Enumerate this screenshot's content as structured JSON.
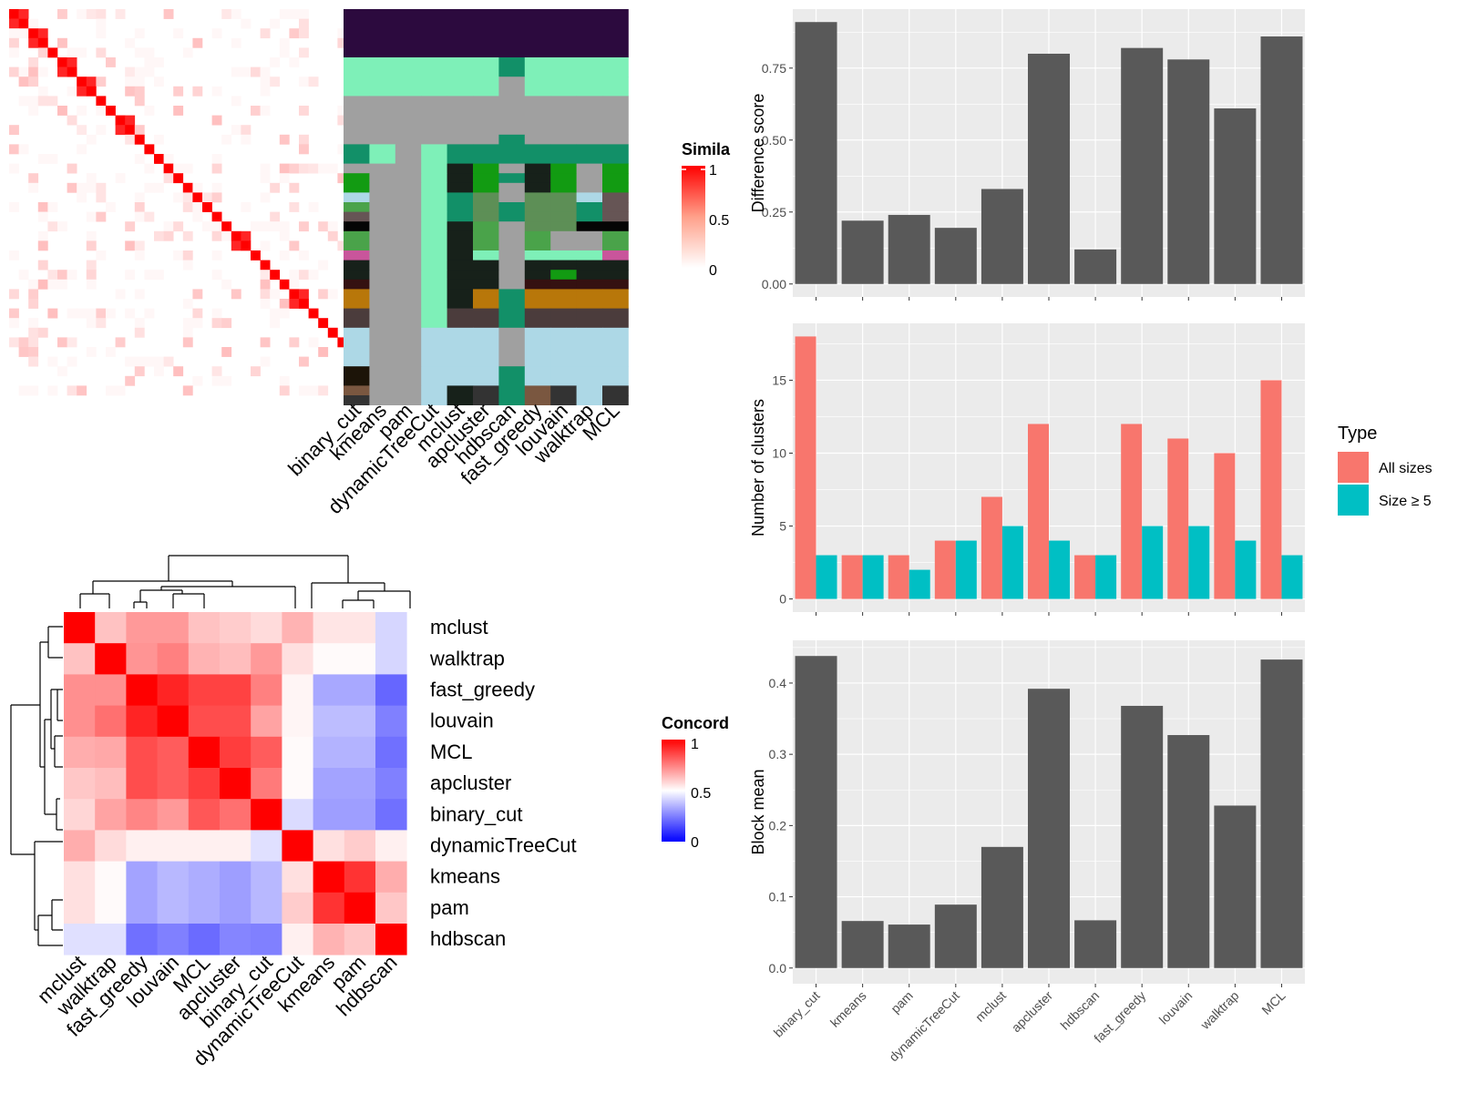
{
  "similarity_legend": {
    "title": "Simila",
    "ticks": [
      "1",
      "0.5",
      "0"
    ]
  },
  "concordance_legend": {
    "title": "Concord",
    "ticks": [
      "1",
      "0.5",
      "0"
    ]
  },
  "palette": {
    "panel_bg": "#ebebeb",
    "grid": "#ffffff",
    "bar": "#595959",
    "all_sizes": "#f8766d",
    "size5": "#00bfc4",
    "high": "#ff0000",
    "mid": "#ffffff",
    "low": "#0000ff"
  },
  "chart_data": [
    {
      "type": "heatmap",
      "name": "similarity",
      "size": 40,
      "blocks": [
        2,
        2,
        1,
        2,
        2,
        1,
        1,
        2,
        1,
        1,
        1,
        1,
        1,
        1,
        1,
        1,
        1,
        1,
        2,
        1,
        1,
        1,
        1,
        2,
        1,
        1,
        1,
        1,
        1
      ],
      "scale": [
        0,
        0.5,
        1
      ]
    },
    {
      "type": "table",
      "name": "cluster-membership",
      "columns": [
        "binary_cut",
        "kmeans",
        "pam",
        "dynamicTreeCut",
        "mclust",
        "apcluster",
        "hdbscan",
        "fast_greedy",
        "louvain",
        "walktrap",
        "MCL"
      ],
      "row_bands": [
        {
          "rows": 5,
          "cells": [
            "#2c0a3e",
            "#2c0a3e",
            "#2c0a3e",
            "#2c0a3e",
            "#2c0a3e",
            "#2c0a3e",
            "#2c0a3e",
            "#2c0a3e",
            "#2c0a3e",
            "#2c0a3e",
            "#2c0a3e"
          ]
        },
        {
          "rows": 2,
          "cells": [
            "#7ef0b8",
            "#7ef0b8",
            "#7ef0b8",
            "#7ef0b8",
            "#7ef0b8",
            "#7ef0b8",
            "#129068",
            "#7ef0b8",
            "#7ef0b8",
            "#7ef0b8",
            "#7ef0b8"
          ]
        },
        {
          "rows": 2,
          "cells": [
            "#7ef0b8",
            "#7ef0b8",
            "#7ef0b8",
            "#7ef0b8",
            "#7ef0b8",
            "#7ef0b8",
            "#a0a0a0",
            "#7ef0b8",
            "#7ef0b8",
            "#7ef0b8",
            "#7ef0b8"
          ]
        },
        {
          "rows": 4,
          "cells": [
            "#a0a0a0",
            "#a0a0a0",
            "#a0a0a0",
            "#a0a0a0",
            "#a0a0a0",
            "#a0a0a0",
            "#a0a0a0",
            "#a0a0a0",
            "#a0a0a0",
            "#a0a0a0",
            "#a0a0a0"
          ]
        },
        {
          "rows": 1,
          "cells": [
            "#a0a0a0",
            "#a0a0a0",
            "#a0a0a0",
            "#a0a0a0",
            "#a0a0a0",
            "#a0a0a0",
            "#129068",
            "#a0a0a0",
            "#a0a0a0",
            "#a0a0a0",
            "#a0a0a0"
          ]
        },
        {
          "rows": 2,
          "cells": [
            "#129068",
            "#7ef0b8",
            "#a0a0a0",
            "#7ef0b8",
            "#129068",
            "#129068",
            "#129068",
            "#129068",
            "#129068",
            "#129068",
            "#129068"
          ]
        },
        {
          "rows": 1,
          "cells": [
            "#a0a0a0",
            "#a0a0a0",
            "#a0a0a0",
            "#7ef0b8",
            "#17211a",
            "#129b12",
            "#a0a0a0",
            "#17211a",
            "#129b12",
            "#a0a0a0",
            "#129b12"
          ]
        },
        {
          "rows": 1,
          "cells": [
            "#129b12",
            "#a0a0a0",
            "#a0a0a0",
            "#7ef0b8",
            "#17211a",
            "#129b12",
            "#129068",
            "#17211a",
            "#129b12",
            "#a0a0a0",
            "#129b12"
          ]
        },
        {
          "rows": 1,
          "cells": [
            "#129b12",
            "#a0a0a0",
            "#a0a0a0",
            "#7ef0b8",
            "#17211a",
            "#129b12",
            "#a0a0a0",
            "#17211a",
            "#129b12",
            "#a0a0a0",
            "#129b12"
          ]
        },
        {
          "rows": 1,
          "cells": [
            "#add8e6",
            "#a0a0a0",
            "#a0a0a0",
            "#7ef0b8",
            "#129068",
            "#5d8f56",
            "#a0a0a0",
            "#5d8f56",
            "#5d8f56",
            "#add8e6",
            "#665555"
          ]
        },
        {
          "rows": 1,
          "cells": [
            "#4aa34a",
            "#a0a0a0",
            "#a0a0a0",
            "#7ef0b8",
            "#129068",
            "#5d8f56",
            "#129068",
            "#5d8f56",
            "#5d8f56",
            "#129068",
            "#665555"
          ]
        },
        {
          "rows": 1,
          "cells": [
            "#665555",
            "#a0a0a0",
            "#a0a0a0",
            "#7ef0b8",
            "#129068",
            "#5d8f56",
            "#129068",
            "#5d8f56",
            "#5d8f56",
            "#129068",
            "#665555"
          ]
        },
        {
          "rows": 1,
          "cells": [
            "#050505",
            "#a0a0a0",
            "#a0a0a0",
            "#7ef0b8",
            "#17211a",
            "#4aa34a",
            "#a0a0a0",
            "#5d8f56",
            "#5d8f56",
            "#050505",
            "#050505"
          ]
        },
        {
          "rows": 2,
          "cells": [
            "#4aa34a",
            "#a0a0a0",
            "#a0a0a0",
            "#7ef0b8",
            "#17211a",
            "#4aa34a",
            "#a0a0a0",
            "#4aa34a",
            "#a0a0a0",
            "#a0a0a0",
            "#4aa34a"
          ]
        },
        {
          "rows": 1,
          "cells": [
            "#c9559b",
            "#a0a0a0",
            "#a0a0a0",
            "#7ef0b8",
            "#17211a",
            "#7ef0b8",
            "#a0a0a0",
            "#7ef0b8",
            "#7ef0b8",
            "#7ef0b8",
            "#c9559b"
          ]
        },
        {
          "rows": 1,
          "cells": [
            "#17211a",
            "#a0a0a0",
            "#a0a0a0",
            "#7ef0b8",
            "#17211a",
            "#17211a",
            "#a0a0a0",
            "#17211a",
            "#17211a",
            "#17211a",
            "#17211a"
          ]
        },
        {
          "rows": 1,
          "cells": [
            "#17211a",
            "#a0a0a0",
            "#a0a0a0",
            "#7ef0b8",
            "#17211a",
            "#17211a",
            "#a0a0a0",
            "#17211a",
            "#129b12",
            "#17211a",
            "#17211a"
          ]
        },
        {
          "rows": 1,
          "cells": [
            "#351111",
            "#a0a0a0",
            "#a0a0a0",
            "#7ef0b8",
            "#17211a",
            "#17211a",
            "#a0a0a0",
            "#351111",
            "#351111",
            "#351111",
            "#351111"
          ]
        },
        {
          "rows": 2,
          "cells": [
            "#b8770a",
            "#a0a0a0",
            "#a0a0a0",
            "#7ef0b8",
            "#17211a",
            "#b8770a",
            "#129068",
            "#b8770a",
            "#b8770a",
            "#b8770a",
            "#b8770a"
          ]
        },
        {
          "rows": 2,
          "cells": [
            "#4b3c3c",
            "#a0a0a0",
            "#a0a0a0",
            "#7ef0b8",
            "#4b3c3c",
            "#4b3c3c",
            "#129068",
            "#4b3c3c",
            "#4b3c3c",
            "#4b3c3c",
            "#4b3c3c"
          ]
        },
        {
          "rows": 4,
          "cells": [
            "#add8e6",
            "#a0a0a0",
            "#a0a0a0",
            "#add8e6",
            "#add8e6",
            "#add8e6",
            "#a0a0a0",
            "#add8e6",
            "#add8e6",
            "#add8e6",
            "#add8e6"
          ]
        },
        {
          "rows": 2,
          "cells": [
            "#1c1408",
            "#a0a0a0",
            "#a0a0a0",
            "#add8e6",
            "#add8e6",
            "#add8e6",
            "#129068",
            "#add8e6",
            "#add8e6",
            "#add8e6",
            "#add8e6"
          ]
        },
        {
          "rows": 1,
          "cells": [
            "#7a5740",
            "#a0a0a0",
            "#a0a0a0",
            "#add8e6",
            "#17211a",
            "#333333",
            "#129068",
            "#7a5740",
            "#333333",
            "#add8e6",
            "#333333"
          ]
        },
        {
          "rows": 1,
          "cells": [
            "#333333",
            "#a0a0a0",
            "#a0a0a0",
            "#add8e6",
            "#17211a",
            "#333333",
            "#129068",
            "#7a5740",
            "#333333",
            "#add8e6",
            "#333333"
          ]
        }
      ]
    },
    {
      "type": "heatmap",
      "name": "concordance",
      "labels": [
        "mclust",
        "walktrap",
        "fast_greedy",
        "louvain",
        "MCL",
        "apcluster",
        "binary_cut",
        "dynamicTreeCut",
        "kmeans",
        "pam",
        "hdbscan"
      ],
      "values": [
        [
          1.0,
          0.62,
          0.7,
          0.7,
          0.62,
          0.6,
          0.57,
          0.65,
          0.55,
          0.55,
          0.42
        ],
        [
          0.62,
          1.0,
          0.71,
          0.75,
          0.65,
          0.63,
          0.7,
          0.56,
          0.51,
          0.51,
          0.42
        ],
        [
          0.72,
          0.72,
          1.0,
          0.93,
          0.87,
          0.87,
          0.75,
          0.52,
          0.33,
          0.33,
          0.2
        ],
        [
          0.72,
          0.78,
          0.93,
          1.0,
          0.85,
          0.85,
          0.68,
          0.52,
          0.37,
          0.37,
          0.25
        ],
        [
          0.66,
          0.67,
          0.85,
          0.82,
          1.0,
          0.88,
          0.82,
          0.51,
          0.35,
          0.35,
          0.22
        ],
        [
          0.61,
          0.63,
          0.85,
          0.82,
          0.88,
          1.0,
          0.76,
          0.51,
          0.32,
          0.32,
          0.25
        ],
        [
          0.58,
          0.68,
          0.74,
          0.7,
          0.83,
          0.78,
          1.0,
          0.43,
          0.31,
          0.31,
          0.22
        ],
        [
          0.66,
          0.57,
          0.53,
          0.53,
          0.53,
          0.53,
          0.44,
          1.0,
          0.56,
          0.6,
          0.53
        ],
        [
          0.56,
          0.51,
          0.32,
          0.36,
          0.34,
          0.31,
          0.36,
          0.56,
          1.0,
          0.9,
          0.66
        ],
        [
          0.56,
          0.51,
          0.32,
          0.36,
          0.34,
          0.31,
          0.36,
          0.6,
          0.9,
          1.0,
          0.61
        ],
        [
          0.44,
          0.44,
          0.22,
          0.25,
          0.21,
          0.26,
          0.25,
          0.53,
          0.65,
          0.61,
          1.0
        ]
      ],
      "legend_title": "Concord",
      "scale": [
        0,
        0.5,
        1
      ]
    },
    {
      "type": "bar",
      "name": "difference-score",
      "categories": [
        "binary_cut",
        "kmeans",
        "pam",
        "dynamicTreeCut",
        "mclust",
        "apcluster",
        "hdbscan",
        "fast_greedy",
        "louvain",
        "walktrap",
        "MCL"
      ],
      "values": [
        0.91,
        0.22,
        0.24,
        0.195,
        0.33,
        0.8,
        0.12,
        0.82,
        0.78,
        0.61,
        0.86
      ],
      "ylabel": "Difference score",
      "ylim": [
        -0.045,
        0.955
      ],
      "yticks": [
        0,
        0.25,
        0.5,
        0.75
      ],
      "ytick_labels": [
        "0.00",
        "0.25",
        "0.50",
        "0.75"
      ],
      "grid": true
    },
    {
      "type": "bar",
      "name": "number-of-clusters",
      "categories": [
        "binary_cut",
        "kmeans",
        "pam",
        "dynamicTreeCut",
        "mclust",
        "apcluster",
        "hdbscan",
        "fast_greedy",
        "louvain",
        "walktrap",
        "MCL"
      ],
      "series": [
        {
          "name": "All sizes",
          "values": [
            18,
            3,
            3,
            4,
            7,
            12,
            3,
            12,
            11,
            10,
            15
          ]
        },
        {
          "name": "Size ≥ 5",
          "values": [
            3,
            3,
            2,
            4,
            5,
            4,
            3,
            5,
            5,
            4,
            3
          ]
        }
      ],
      "ylabel": "Number of clusters",
      "ylim": [
        -0.9,
        18.9
      ],
      "yticks": [
        0,
        5,
        10,
        15
      ],
      "ytick_labels": [
        "0",
        "5",
        "10",
        "15"
      ],
      "legend_title": "Type",
      "legend_position": "right",
      "grid": true
    },
    {
      "type": "bar",
      "name": "block-mean",
      "categories": [
        "binary_cut",
        "kmeans",
        "pam",
        "dynamicTreeCut",
        "mclust",
        "apcluster",
        "hdbscan",
        "fast_greedy",
        "louvain",
        "walktrap",
        "MCL"
      ],
      "values": [
        0.438,
        0.066,
        0.061,
        0.089,
        0.17,
        0.392,
        0.067,
        0.368,
        0.327,
        0.228,
        0.433
      ],
      "ylabel": "Block mean",
      "ylim": [
        -0.022,
        0.46
      ],
      "yticks": [
        0,
        0.1,
        0.2,
        0.3,
        0.4
      ],
      "ytick_labels": [
        "0.0",
        "0.1",
        "0.2",
        "0.3",
        "0.4"
      ],
      "grid": true
    }
  ]
}
